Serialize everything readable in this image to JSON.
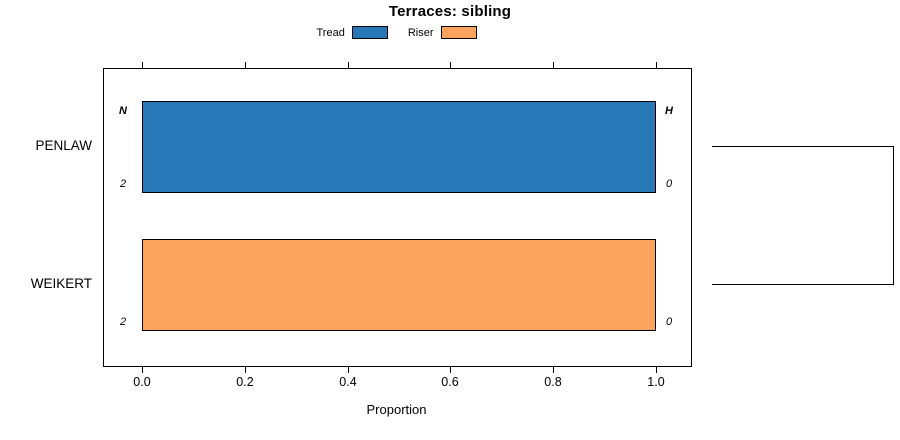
{
  "chart_data": {
    "type": "bar",
    "orientation": "horizontal",
    "title": "Terraces: sibling",
    "xlabel": "Proportion",
    "xlim": [
      0.0,
      1.0
    ],
    "x_ticks": [
      0.0,
      0.2,
      0.4,
      0.6,
      0.8,
      1.0
    ],
    "x_tick_labels": [
      "0.0",
      "0.2",
      "0.4",
      "0.6",
      "0.8",
      "1.0"
    ],
    "categories": [
      "PENLAW",
      "WEIKERT"
    ],
    "series": [
      {
        "name": "Tread",
        "color": "#2878b8",
        "values": [
          1.0,
          0.0
        ]
      },
      {
        "name": "Riser",
        "color": "#fca45e",
        "values": [
          0.0,
          1.0
        ]
      }
    ],
    "annotations": {
      "left_header": "N",
      "right_header": "H",
      "left_values": [
        "2",
        "2"
      ],
      "right_values": [
        "0",
        "0"
      ]
    },
    "legend_position": "top",
    "grid": false,
    "right_cluster_bracket": true,
    "colors": {
      "axis": "#000000",
      "background": "#ffffff"
    }
  }
}
